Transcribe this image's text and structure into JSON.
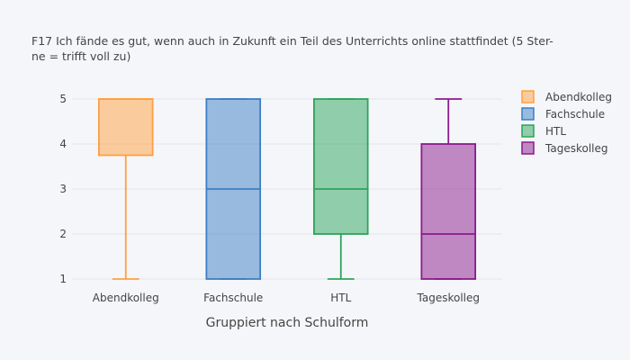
{
  "chart_data": {
    "type": "box",
    "title_lines": [
      "F17 Ich fände es gut, wenn auch in Zukunft ein Teil des Unterrichts online stattfindet (5 Ster-",
      "ne = trifft voll zu)"
    ],
    "xlabel": "Gruppiert nach Schulform",
    "ylabel": "",
    "ylim": [
      0.8,
      5.2
    ],
    "yticks": [
      1,
      2,
      3,
      4,
      5
    ],
    "grid": true,
    "legend_position": "right",
    "categories": [
      "Abendkolleg",
      "Fachschule",
      "HTL",
      "Tageskolleg"
    ],
    "series": [
      {
        "name": "Abendkolleg",
        "color": "#ff9f40",
        "min": 1,
        "q1": 3.75,
        "median": 5,
        "q3": 5,
        "max": 5
      },
      {
        "name": "Fachschule",
        "color": "#3d7ec4",
        "min": 1,
        "q1": 1,
        "median": 3,
        "q3": 5,
        "max": 5
      },
      {
        "name": "HTL",
        "color": "#2ca45a",
        "min": 1,
        "q1": 2,
        "median": 3,
        "q3": 5,
        "max": 5
      },
      {
        "name": "Tageskolleg",
        "color": "#8b1a8b",
        "min": 1,
        "q1": 1,
        "median": 2,
        "q3": 4,
        "max": 5
      }
    ]
  }
}
